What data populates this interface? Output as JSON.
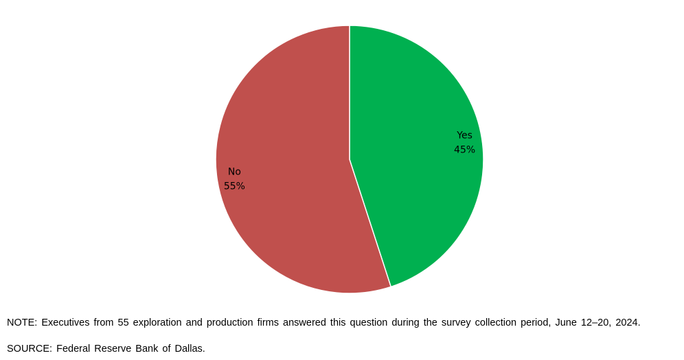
{
  "chart_data": {
    "type": "pie",
    "categories": [
      "No",
      "Yes"
    ],
    "values": [
      55,
      45
    ],
    "value_labels": [
      "55%",
      "45%"
    ],
    "colors": [
      "#C0504D",
      "#00B050"
    ],
    "title": "",
    "legend": "none"
  },
  "footnotes": {
    "note": "NOTE: Executives from 55 exploration and production firms answered this question during the survey collection period, June 12–20, 2024.",
    "source": "SOURCE: Federal Reserve Bank of Dallas."
  }
}
